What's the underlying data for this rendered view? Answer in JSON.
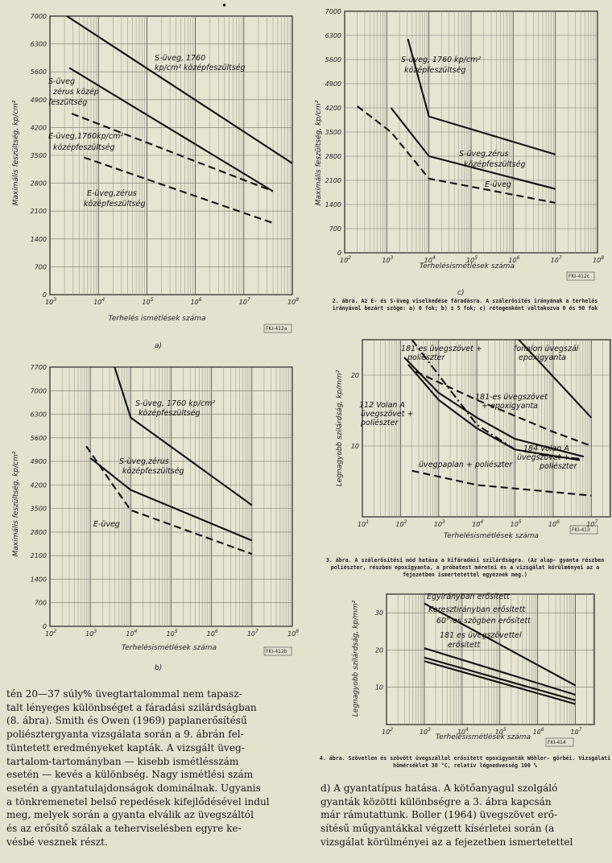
{
  "page_mark": "•",
  "chart_data": [
    {
      "id": "fig-a",
      "type": "line",
      "scale": "log-x",
      "ylabel": "Maximális feszültség, kp/cm²",
      "xlabel": "Terhelés ismétlések száma",
      "subfig": "a)",
      "ref": "FKI-412a",
      "xtick_exponents": [
        3,
        4,
        5,
        6,
        7,
        8
      ],
      "yticks": [
        0,
        700,
        1400,
        2100,
        2800,
        3500,
        4200,
        4900,
        5600,
        6300,
        7000
      ],
      "ylim": [
        0,
        7000
      ],
      "xlim_exp": [
        3,
        8
      ],
      "series": [
        {
          "name": "S-üveg, 1760 kp/cm² középfeszültség",
          "style": "solid",
          "points": [
            [
              3.35,
              7000
            ],
            [
              8,
              3300
            ]
          ]
        },
        {
          "name": "S-üveg, zérus középfeszültség",
          "style": "solid",
          "points": [
            [
              3.4,
              5700
            ],
            [
              7.6,
              2600
            ]
          ]
        },
        {
          "name": "E-üveg, 1760 kp/cm² középfeszültség",
          "style": "dash",
          "points": [
            [
              3.45,
              4550
            ],
            [
              7.6,
              2600
            ]
          ]
        },
        {
          "name": "E-üveg, zérus középfeszültség",
          "style": "dash",
          "points": [
            [
              3.7,
              3450
            ],
            [
              7.6,
              1800
            ]
          ]
        }
      ],
      "annotations": [
        "S-üveg, 1760",
        "kp/cm² középfeszültség",
        "S-üveg",
        "zérus közép",
        "feszültség",
        "E-üveg,1760kp/cm²",
        "középfeszültség",
        "E-üveg,zérus",
        "középfeszültség"
      ]
    },
    {
      "id": "fig-c",
      "type": "line",
      "scale": "log-x",
      "ylabel": "Maximális feszültség, kp/cm²",
      "xlabel": "Terhelésismétlések száma",
      "subfig": "c)",
      "ref": "FKI-412c",
      "xtick_exponents": [
        2,
        3,
        4,
        5,
        6,
        7,
        8
      ],
      "yticks": [
        0,
        700,
        1400,
        2100,
        2800,
        3500,
        4200,
        4900,
        5600,
        6300,
        7000
      ],
      "ylim": [
        0,
        7000
      ],
      "xlim_exp": [
        2,
        8
      ],
      "series": [
        {
          "name": "S-üveg, 1760 kp/cm² középfeszültség",
          "style": "solid",
          "points": [
            [
              3.5,
              6200
            ],
            [
              4,
              3950
            ],
            [
              7,
              2850
            ]
          ]
        },
        {
          "name": "S-üveg, zérus középfeszültség",
          "style": "solid",
          "points": [
            [
              3.1,
              4200
            ],
            [
              4,
              2800
            ],
            [
              7,
              1850
            ]
          ]
        },
        {
          "name": "E-üveg",
          "style": "dash",
          "points": [
            [
              2.3,
              4250
            ],
            [
              3.1,
              3500
            ],
            [
              4,
              2150
            ],
            [
              7,
              1450
            ]
          ]
        }
      ],
      "annotations": [
        "S-üveg, 1760 kp/cm²",
        "középfeszültség",
        "S-üveg,zérus",
        "középfeszültség",
        "E-üveg"
      ]
    },
    {
      "id": "fig-b",
      "type": "line",
      "scale": "log-x",
      "ylabel": "Maximális feszültség, kp/cm²",
      "xlabel": "Terhelésismétlések száma",
      "subfig": "b)",
      "ref": "FKI-412b",
      "xtick_exponents": [
        2,
        3,
        4,
        5,
        6,
        7,
        8
      ],
      "yticks": [
        0,
        700,
        1400,
        2100,
        2800,
        3500,
        4200,
        4900,
        5600,
        6300,
        7000,
        7700
      ],
      "ylim": [
        0,
        7700
      ],
      "xlim_exp": [
        2,
        8
      ],
      "series": [
        {
          "name": "S-üveg, 1760 kp/cm² középfeszültség",
          "style": "solid",
          "points": [
            [
              3.6,
              7700
            ],
            [
              4,
              6200
            ],
            [
              7,
              3600
            ]
          ]
        },
        {
          "name": "S-üveg, zérus középfeszültség",
          "style": "solid",
          "points": [
            [
              3,
              5000
            ],
            [
              4,
              4050
            ],
            [
              7,
              2550
            ]
          ]
        },
        {
          "name": "E-üveg",
          "style": "dash",
          "points": [
            [
              2.9,
              5350
            ],
            [
              3.5,
              4300
            ],
            [
              4,
              3450
            ],
            [
              7,
              2150
            ]
          ]
        }
      ],
      "annotations": [
        "S-üveg, 1760 kp/cm²",
        "középfeszültség",
        "S-üveg,zérus",
        "középfeszültség",
        "E-üveg"
      ]
    },
    {
      "id": "fig-3",
      "type": "line",
      "scale": "log-x",
      "ylabel": "Legnagyobb szilárdság, kp/mm²",
      "xlabel": "Terhelésismétlések száma",
      "ref": "FKI-413",
      "xtick_exponents": [
        1,
        2,
        3,
        4,
        5,
        6,
        7
      ],
      "yticks": [
        10,
        20
      ],
      "ylim": [
        0,
        25
      ],
      "xlim_exp": [
        1,
        7.5
      ],
      "series": [
        {
          "name": "181-es üvegszövet + poliészter",
          "style": "dashdot",
          "points": [
            [
              2.3,
              25
            ],
            [
              3,
              20
            ],
            [
              4,
              13
            ],
            [
              5,
              9.5
            ],
            [
              6,
              8.5
            ],
            [
              6.7,
              8.2
            ]
          ]
        },
        {
          "name": "fonalon üvegszál epoxigyanta",
          "style": "solid",
          "points": [
            [
              5.1,
              25
            ],
            [
              7,
              14
            ]
          ]
        },
        {
          "name": "181-es üvegszövet + epoxigyanta",
          "style": "dash",
          "points": [
            [
              2.4,
              20.5
            ],
            [
              4,
              16.5
            ],
            [
              6,
              12
            ],
            [
              7,
              10
            ]
          ]
        },
        {
          "name": "112 Volan A üvegszövet + poliészter",
          "style": "solid",
          "points": [
            [
              2.2,
              21.5
            ],
            [
              3,
              16.5
            ],
            [
              4,
              12.5
            ],
            [
              5,
              9.5
            ],
            [
              6.7,
              8
            ]
          ]
        },
        {
          "name": "184 Volan A üvegszövet + poliészter",
          "style": "solid",
          "points": [
            [
              2.1,
              22.5
            ],
            [
              3,
              17.5
            ],
            [
              4,
              14
            ],
            [
              5,
              11
            ],
            [
              6.8,
              8.5
            ]
          ]
        },
        {
          "name": "üvegpaplan + poliészter",
          "style": "dash",
          "points": [
            [
              2.3,
              6.5
            ],
            [
              4,
              4.5
            ],
            [
              6,
              3.5
            ],
            [
              7,
              3
            ]
          ]
        }
      ],
      "annotations": [
        "181-es üvegszövet +",
        "poliészter",
        "fonalon üvegszál",
        "epoxigyanta",
        "181-es üvegszövet",
        "+ epoxigyanta",
        "112 Volan A",
        "üvegszövet +",
        "poliészter",
        "184 Volan A",
        "üvegszövet +",
        "poliészter",
        "üvegpaplan + poliészter"
      ]
    },
    {
      "id": "fig-4",
      "type": "line",
      "scale": "log-x",
      "ylabel": "Legnagyobb szilárdság, kp/mm²",
      "xlabel": "Terhelésismétlések száma",
      "ref": "FKI-414",
      "xtick_exponents": [
        2,
        3,
        4,
        5,
        6,
        7
      ],
      "yticks": [
        10,
        20,
        30
      ],
      "ylim": [
        0,
        35
      ],
      "xlim_exp": [
        2,
        7.5
      ],
      "series": [
        {
          "name": "Egyirányban erősített",
          "style": "solid",
          "points": [
            [
              3,
              32.5
            ],
            [
              7,
              10.5
            ]
          ]
        },
        {
          "name": "Keresztirányban erősített",
          "style": "solid",
          "points": [
            [
              3,
              20.5
            ],
            [
              7,
              8
            ]
          ]
        },
        {
          "name": "60°-os szögben erősített",
          "style": "solid",
          "points": [
            [
              3,
              18
            ],
            [
              7,
              6.5
            ]
          ]
        },
        {
          "name": "181-es üvegszövettel erősített",
          "style": "solid",
          "points": [
            [
              3,
              17
            ],
            [
              7,
              5.5
            ]
          ]
        }
      ],
      "annotations": [
        "Egyirányban erősített",
        "Keresztirányban erősített",
        "60°-os szögben erősített",
        "181 es üvegszövettel",
        "erősített"
      ]
    }
  ],
  "captions": {
    "fig2": "2. ábra. Az E- és S-üveg viselkedése fáradásra. A szálerősítés irányának\na terhelés irányával bezárt szöge: a) 0 fok; b) ± 5 fok; c) rétegenként\nváltakozva 0 és 90 fok",
    "fig3": "3. ábra. A szálerősítési mód hatása a kifáradási szilárdságra. (Az alap-\ngyanta részben poliészter, részben epoxigyanta, a próbatest méretei és\na vizsgálat körülményei az a fejezetben ismertetettel egyeznek meg.)",
    "fig4": "4. ábra. Szövetlen és szövött üvegszállal erősített epoxigyanták Wöhler-\ngörbéi. Vizsgálati hőmérséklet 38 °C, relatív légnedvesség 100 %"
  },
  "text": {
    "left": "tén 20—37 súly% üvegtartalommal nem tapasz-\ntalt lényeges különbséget a fáradási szilárdságban\n(8. ábra). Smith és Owen (1969) paplanerősítésű\npoliésztergyanta vizsgálata során a 9. ábrán fel-\ntüntetett eredményeket kapták. A vizsgált üveg-\ntartalom-tartományban — kisebb ismétlésszám\nesetén — kevés a különbség. Nagy ismétlési szám\nesetén a gyantatulajdonságok dominálnak. Ugyanis\na tönkremenetel belső repedések kifejlődésével indul\nmeg, melyek során a gyanta elválik az üvegszáltól\nés az erősítő szálak a teherviselésben egyre ke-\nvésbé vesznek részt.",
    "right": "d) A gyantatípus hatása. A kötőanyagul szolgáló\ngyanták közötti különbségre a 3. ábra kapcsán\nmár rámutattunk. Boller (1964) üvegszövet erő-\nsítésű műgyantákkal végzett kísérletei során (a\nvizsgálat körülményei az a fejezetben ismertetettel"
  }
}
